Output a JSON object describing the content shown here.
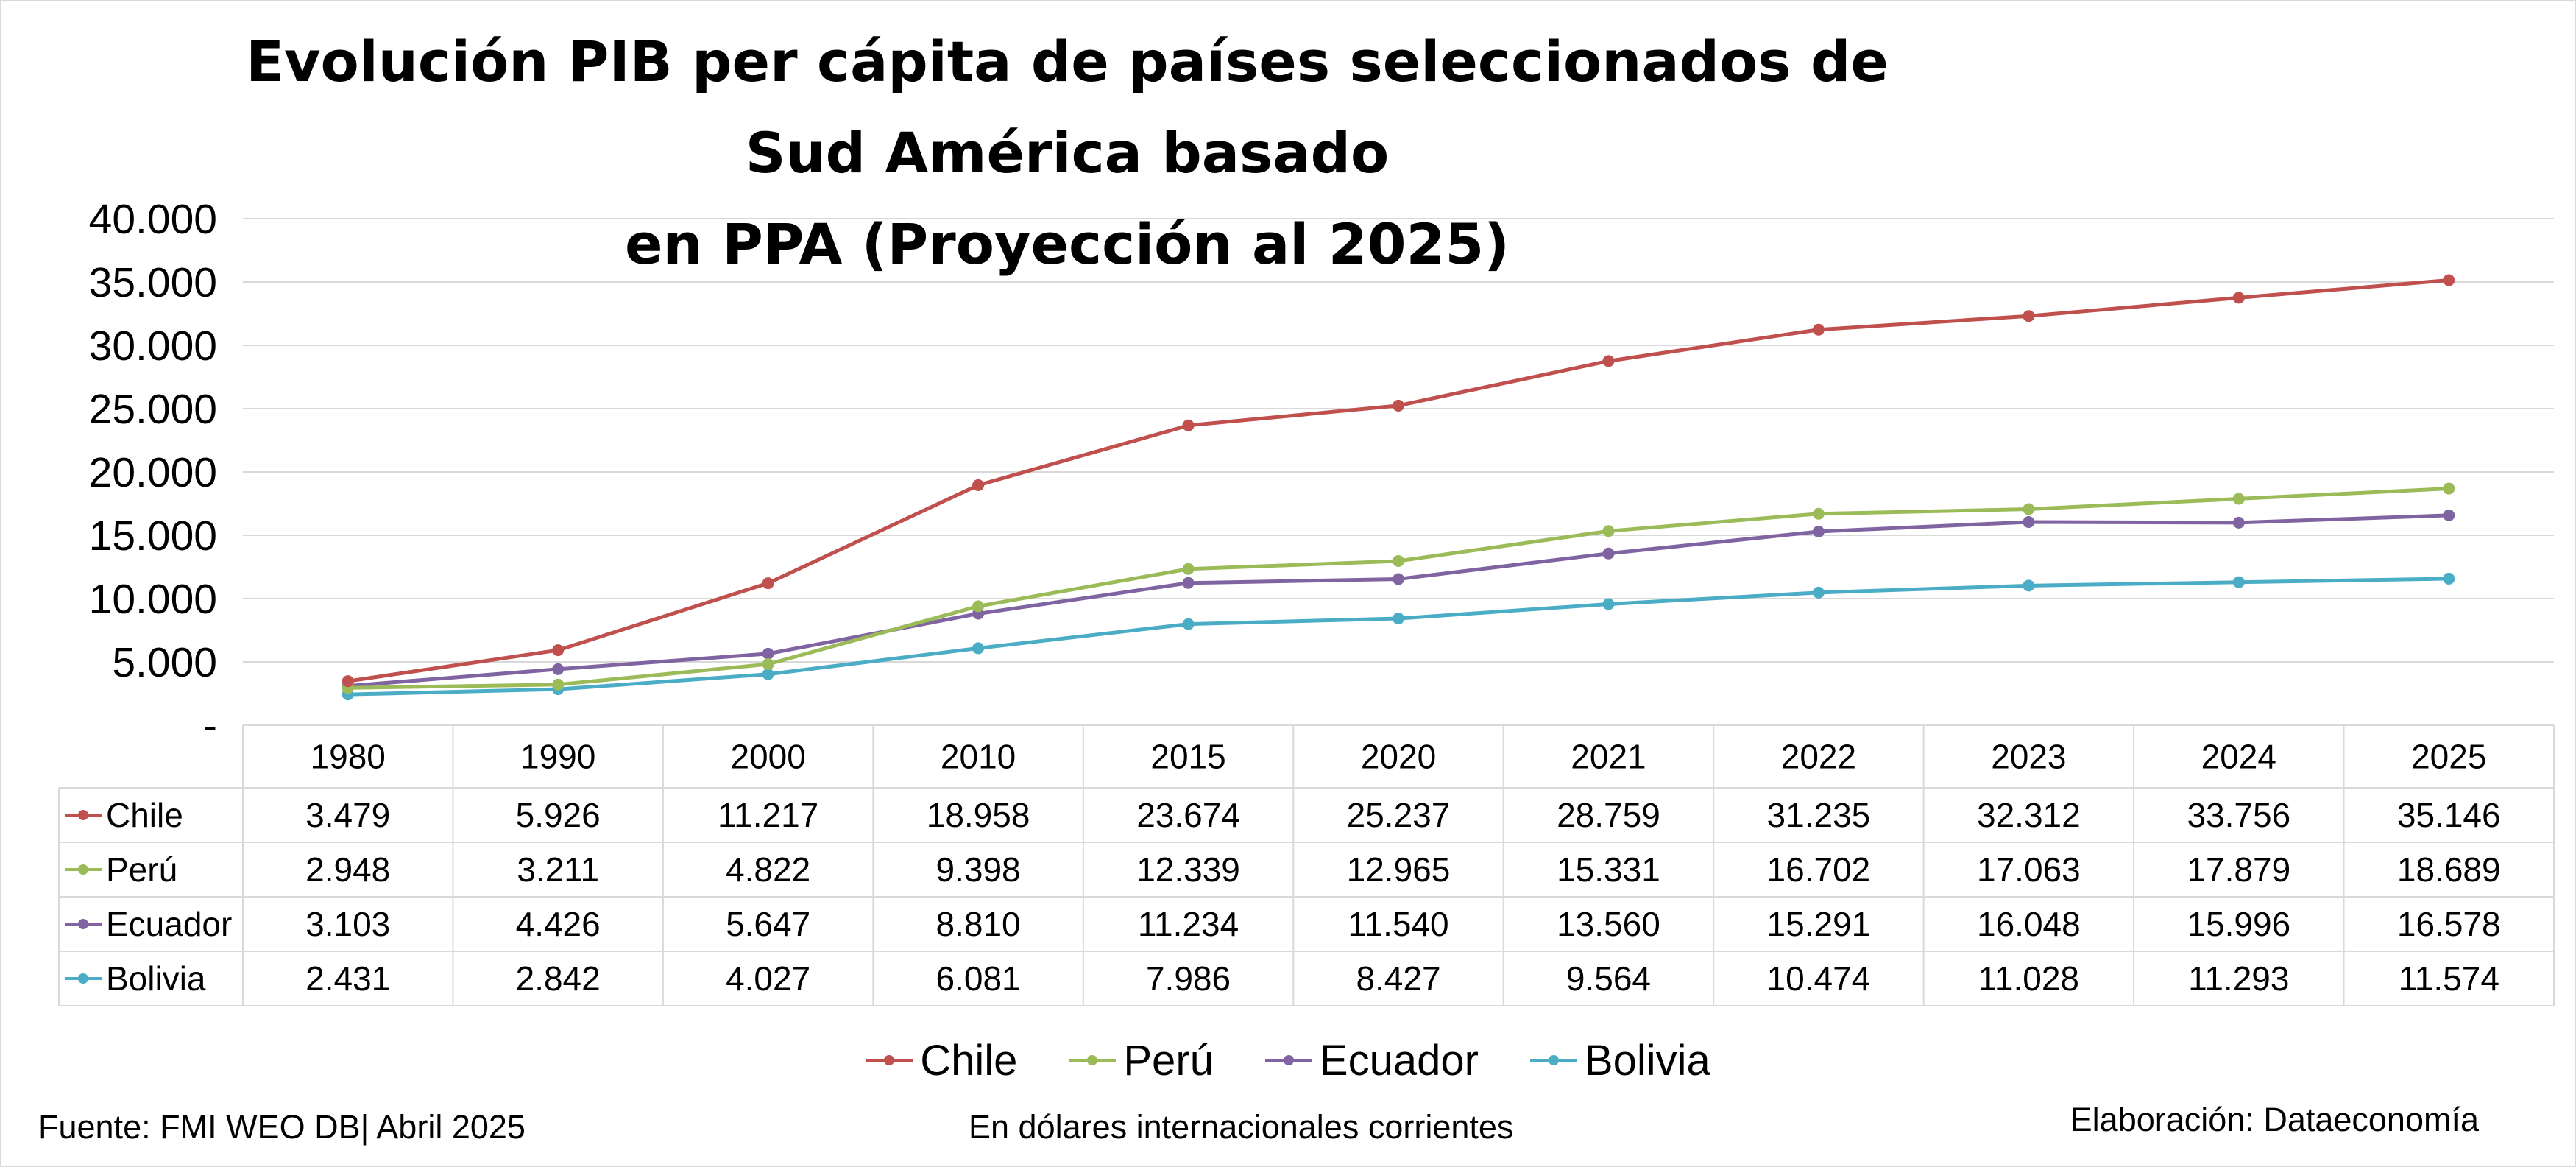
{
  "chart_data": {
    "type": "line",
    "title": "Evolución PIB per cápita de países seleccionados de Sud América  basado\nen PPA (Proyección al 2025)",
    "categories": [
      "1980",
      "1990",
      "2000",
      "2010",
      "2015",
      "2020",
      "2021",
      "2022",
      "2023",
      "2024",
      "2025"
    ],
    "ylim": [
      0,
      40000
    ],
    "yticks": [
      {
        "value": 0,
        "label": "-"
      },
      {
        "value": 5000,
        "label": "5.000"
      },
      {
        "value": 10000,
        "label": "10.000"
      },
      {
        "value": 15000,
        "label": "15.000"
      },
      {
        "value": 20000,
        "label": "20.000"
      },
      {
        "value": 25000,
        "label": "25.000"
      },
      {
        "value": 30000,
        "label": "30.000"
      },
      {
        "value": 35000,
        "label": "35.000"
      },
      {
        "value": 40000,
        "label": "40.000"
      }
    ],
    "grid": true,
    "legend_position": "bottom",
    "data_table": true,
    "series": [
      {
        "name": "Chile",
        "color": "#c0504d",
        "values": [
          3479,
          5926,
          11217,
          18958,
          23674,
          25237,
          28759,
          31235,
          32312,
          33756,
          35146
        ],
        "labels": [
          "3.479",
          "5.926",
          "11.217",
          "18.958",
          "23.674",
          "25.237",
          "28.759",
          "31.235",
          "32.312",
          "33.756",
          "35.146"
        ]
      },
      {
        "name": "Perú",
        "color": "#9bbb59",
        "values": [
          2948,
          3211,
          4822,
          9398,
          12339,
          12965,
          15331,
          16702,
          17063,
          17879,
          18689
        ],
        "labels": [
          "2.948",
          "3.211",
          "4.822",
          "9.398",
          "12.339",
          "12.965",
          "15.331",
          "16.702",
          "17.063",
          "17.879",
          "18.689"
        ]
      },
      {
        "name": "Ecuador",
        "color": "#8064a2",
        "values": [
          3103,
          4426,
          5647,
          8810,
          11234,
          11540,
          13560,
          15291,
          16048,
          15996,
          16578
        ],
        "labels": [
          "3.103",
          "4.426",
          "5.647",
          "8.810",
          "11.234",
          "11.540",
          "13.560",
          "15.291",
          "16.048",
          "15.996",
          "16.578"
        ]
      },
      {
        "name": "Bolivia",
        "color": "#4bacc6",
        "values": [
          2431,
          2842,
          4027,
          6081,
          7986,
          8427,
          9564,
          10474,
          11028,
          11293,
          11574
        ],
        "labels": [
          "2.431",
          "2.842",
          "4.027",
          "6.081",
          "7.986",
          "8.427",
          "9.564",
          "10.474",
          "11.028",
          "11.293",
          "11.574"
        ]
      }
    ]
  },
  "footer": {
    "source": "Fuente: FMI WEO DB| Abril 2025",
    "units": "En dólares internacionales corrientes",
    "credit": "Elaboración: Dataeconomía"
  }
}
